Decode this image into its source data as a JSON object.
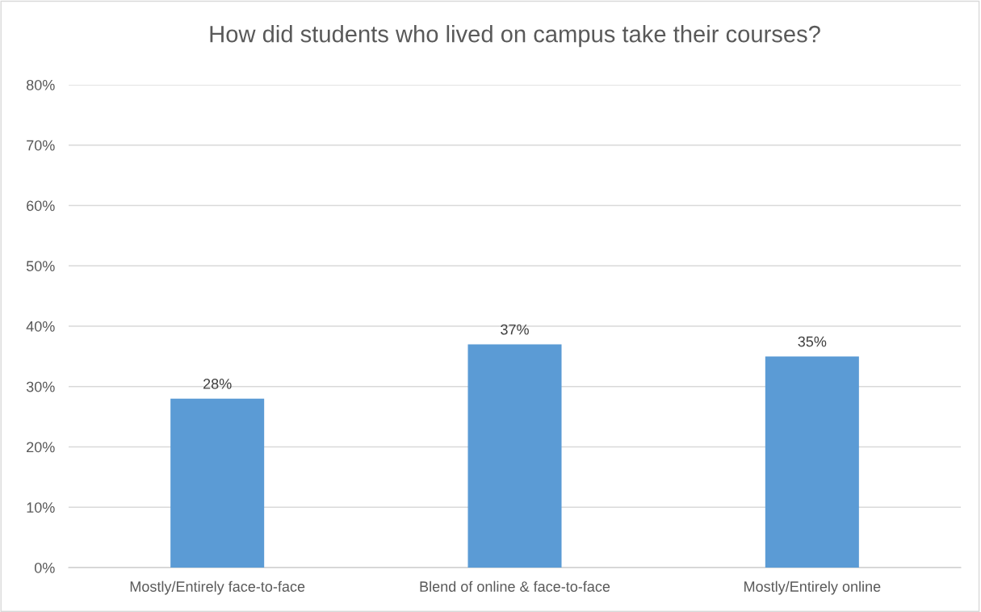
{
  "chart_data": {
    "type": "bar",
    "title": "How did students who lived on campus take their courses?",
    "categories": [
      "Mostly/Entirely face-to-face",
      "Blend of online & face-to-face",
      "Mostly/Entirely online"
    ],
    "values": [
      28,
      37,
      35
    ],
    "color": "#5b9bd5",
    "data_labels": true,
    "value_labels": [
      "28%",
      "37%",
      "35%"
    ],
    "ylim": [
      0,
      80
    ],
    "yticks": [
      {
        "value": 0,
        "label": "0%"
      },
      {
        "value": 10,
        "label": "10%"
      },
      {
        "value": 20,
        "label": "20%"
      },
      {
        "value": 30,
        "label": "30%"
      },
      {
        "value": 40,
        "label": "40%"
      },
      {
        "value": 50,
        "label": "50%"
      },
      {
        "value": 60,
        "label": "60%"
      },
      {
        "value": 70,
        "label": "70%"
      },
      {
        "value": 80,
        "label": "80%"
      }
    ],
    "grid": "y",
    "legend": false
  }
}
